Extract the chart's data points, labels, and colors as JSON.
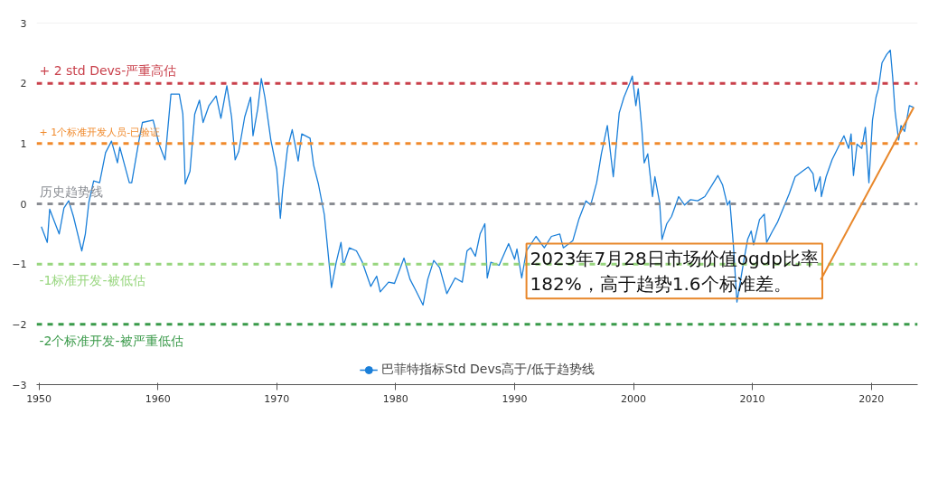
{
  "chart_data": {
    "type": "line",
    "x": [
      1950.2,
      1950.7,
      1950.9,
      1951.7,
      1952.1,
      1952.5,
      1952.9,
      1953.6,
      1953.9,
      1954.2,
      1954.6,
      1955.1,
      1955.6,
      1956.1,
      1956.6,
      1956.8,
      1957.6,
      1957.8,
      1958.4,
      1958.7,
      1959.6,
      1960.1,
      1960.6,
      1961.1,
      1961.8,
      1962.1,
      1962.3,
      1962.7,
      1963.1,
      1963.5,
      1963.8,
      1964.3,
      1964.9,
      1965.3,
      1965.8,
      1966.2,
      1966.5,
      1966.8,
      1967.3,
      1967.8,
      1968.0,
      1968.4,
      1968.7,
      1969.0,
      1969.5,
      1970.0,
      1970.3,
      1970.5,
      1970.9,
      1971.3,
      1971.8,
      1972.1,
      1972.8,
      1973.1,
      1973.5,
      1974.0,
      1974.6,
      1975.0,
      1975.4,
      1975.6,
      1976.1,
      1976.7,
      1977.2,
      1977.9,
      1978.4,
      1978.7,
      1979.4,
      1979.9,
      1980.7,
      1981.2,
      1981.7,
      1982.3,
      1982.7,
      1983.2,
      1983.7,
      1984.3,
      1985.0,
      1985.6,
      1986.0,
      1986.3,
      1986.7,
      1987.1,
      1987.5,
      1987.7,
      1988.0,
      1988.7,
      1989.5,
      1990.0,
      1990.2,
      1990.6,
      1991.0,
      1991.8,
      1992.5,
      1993.1,
      1993.8,
      1994.1,
      1994.9,
      1995.4,
      1996.0,
      1996.4,
      1996.9,
      1997.3,
      1997.8,
      1998.3,
      1998.8,
      1999.2,
      1999.7,
      1999.9,
      2000.2,
      2000.4,
      2000.7,
      2000.9,
      2001.2,
      2001.6,
      2001.8,
      2002.2,
      2002.4,
      2002.8,
      2003.2,
      2003.8,
      2004.3,
      2004.8,
      2005.4,
      2006.0,
      2006.6,
      2007.1,
      2007.5,
      2007.9,
      2008.1,
      2008.4,
      2008.7,
      2009.3,
      2009.6,
      2009.9,
      2010.1,
      2010.6,
      2011.0,
      2011.2,
      2011.7,
      2012.1,
      2012.6,
      2013.1,
      2013.6,
      2014.2,
      2014.7,
      2015.1,
      2015.3,
      2015.7,
      2015.8,
      2016.2,
      2016.7,
      2017.3,
      2017.7,
      2018.1,
      2018.3,
      2018.5,
      2018.8,
      2019.2,
      2019.5,
      2019.8,
      2020.1,
      2020.4,
      2020.6,
      2020.9,
      2021.3,
      2021.6,
      2021.8,
      2022.0,
      2022.3,
      2022.5,
      2022.8,
      2023.2,
      2023.57
    ],
    "series": [
      {
        "name": "巴菲特指标Std Devs高于/低于趋势线",
        "color": "#1a7fd9",
        "values": [
          -0.38,
          -0.64,
          -0.09,
          -0.5,
          -0.07,
          0.05,
          -0.21,
          -0.78,
          -0.5,
          0.03,
          0.38,
          0.35,
          0.85,
          1.04,
          0.68,
          0.94,
          0.35,
          0.35,
          1.04,
          1.35,
          1.39,
          0.99,
          0.73,
          1.82,
          1.82,
          1.49,
          0.33,
          0.54,
          1.49,
          1.72,
          1.35,
          1.63,
          1.79,
          1.42,
          1.96,
          1.44,
          0.73,
          0.87,
          1.44,
          1.77,
          1.13,
          1.58,
          2.08,
          1.77,
          1.06,
          0.57,
          -0.24,
          0.24,
          0.92,
          1.23,
          0.71,
          1.16,
          1.09,
          0.64,
          0.33,
          -0.18,
          -1.39,
          -0.97,
          -0.64,
          -1.02,
          -0.73,
          -0.78,
          -0.97,
          -1.37,
          -1.2,
          -1.46,
          -1.3,
          -1.32,
          -0.9,
          -1.25,
          -1.44,
          -1.68,
          -1.25,
          -0.94,
          -1.06,
          -1.49,
          -1.23,
          -1.3,
          -0.78,
          -0.73,
          -0.87,
          -0.5,
          -0.33,
          -1.23,
          -0.97,
          -1.02,
          -0.66,
          -0.92,
          -0.75,
          -1.23,
          -0.78,
          -0.54,
          -0.73,
          -0.54,
          -0.5,
          -0.73,
          -0.61,
          -0.26,
          0.05,
          -0.02,
          0.35,
          0.83,
          1.3,
          0.45,
          1.51,
          1.77,
          2.01,
          2.12,
          1.63,
          1.91,
          1.25,
          0.68,
          0.83,
          0.12,
          0.45,
          0.02,
          -0.59,
          -0.33,
          -0.21,
          0.12,
          -0.02,
          0.07,
          0.05,
          0.12,
          0.31,
          0.47,
          0.31,
          -0.02,
          0.05,
          -0.68,
          -1.63,
          -0.92,
          -0.59,
          -0.45,
          -0.68,
          -0.26,
          -0.17,
          -0.64,
          -0.45,
          -0.31,
          -0.07,
          0.17,
          0.45,
          0.54,
          0.61,
          0.5,
          0.21,
          0.45,
          0.12,
          0.45,
          0.73,
          0.97,
          1.13,
          0.92,
          1.16,
          0.47,
          0.99,
          0.92,
          1.27,
          0.35,
          1.39,
          1.77,
          1.91,
          2.34,
          2.48,
          2.55,
          2.1,
          1.53,
          1.06,
          1.3,
          1.2,
          1.63,
          1.6
        ]
      }
    ],
    "xlim": [
      1949.8,
      2023.9
    ],
    "ylim": [
      -3,
      3
    ],
    "xticks": [
      1950,
      1960,
      1970,
      1980,
      1990,
      2000,
      2010,
      2020
    ],
    "yticks": [
      -3,
      -2,
      -1,
      0,
      1,
      2,
      3
    ],
    "ref_lines": [
      {
        "axis": "y",
        "value": 2,
        "label": "+ 2 std Devs-严重高估",
        "color": "#c9404b",
        "line_style": "dashed"
      },
      {
        "axis": "y",
        "value": 1,
        "label": "+ 1个标准开发人员-已验证",
        "color": "#f08a2c",
        "line_style": "dashed"
      },
      {
        "axis": "y",
        "value": 0,
        "label": "历史趋势线",
        "color": "#8a8d93",
        "line_style": "dashed"
      },
      {
        "axis": "y",
        "value": -1,
        "label": "-1标准开发-被低估",
        "color": "#98d67f",
        "line_style": "dashed"
      },
      {
        "axis": "y",
        "value": -2,
        "label": "-2个标准开发-被严重低估",
        "color": "#3a9a4a",
        "line_style": "dashed"
      }
    ],
    "annotations": [
      {
        "text": "2023年7月28日市场价值ogdp比率\n182%，高于趋势1.6个标准差。",
        "x": 2023.57,
        "y": 1.6
      }
    ],
    "grid": false,
    "legend": "bottom",
    "marker": "none",
    "line_style": "solid"
  }
}
